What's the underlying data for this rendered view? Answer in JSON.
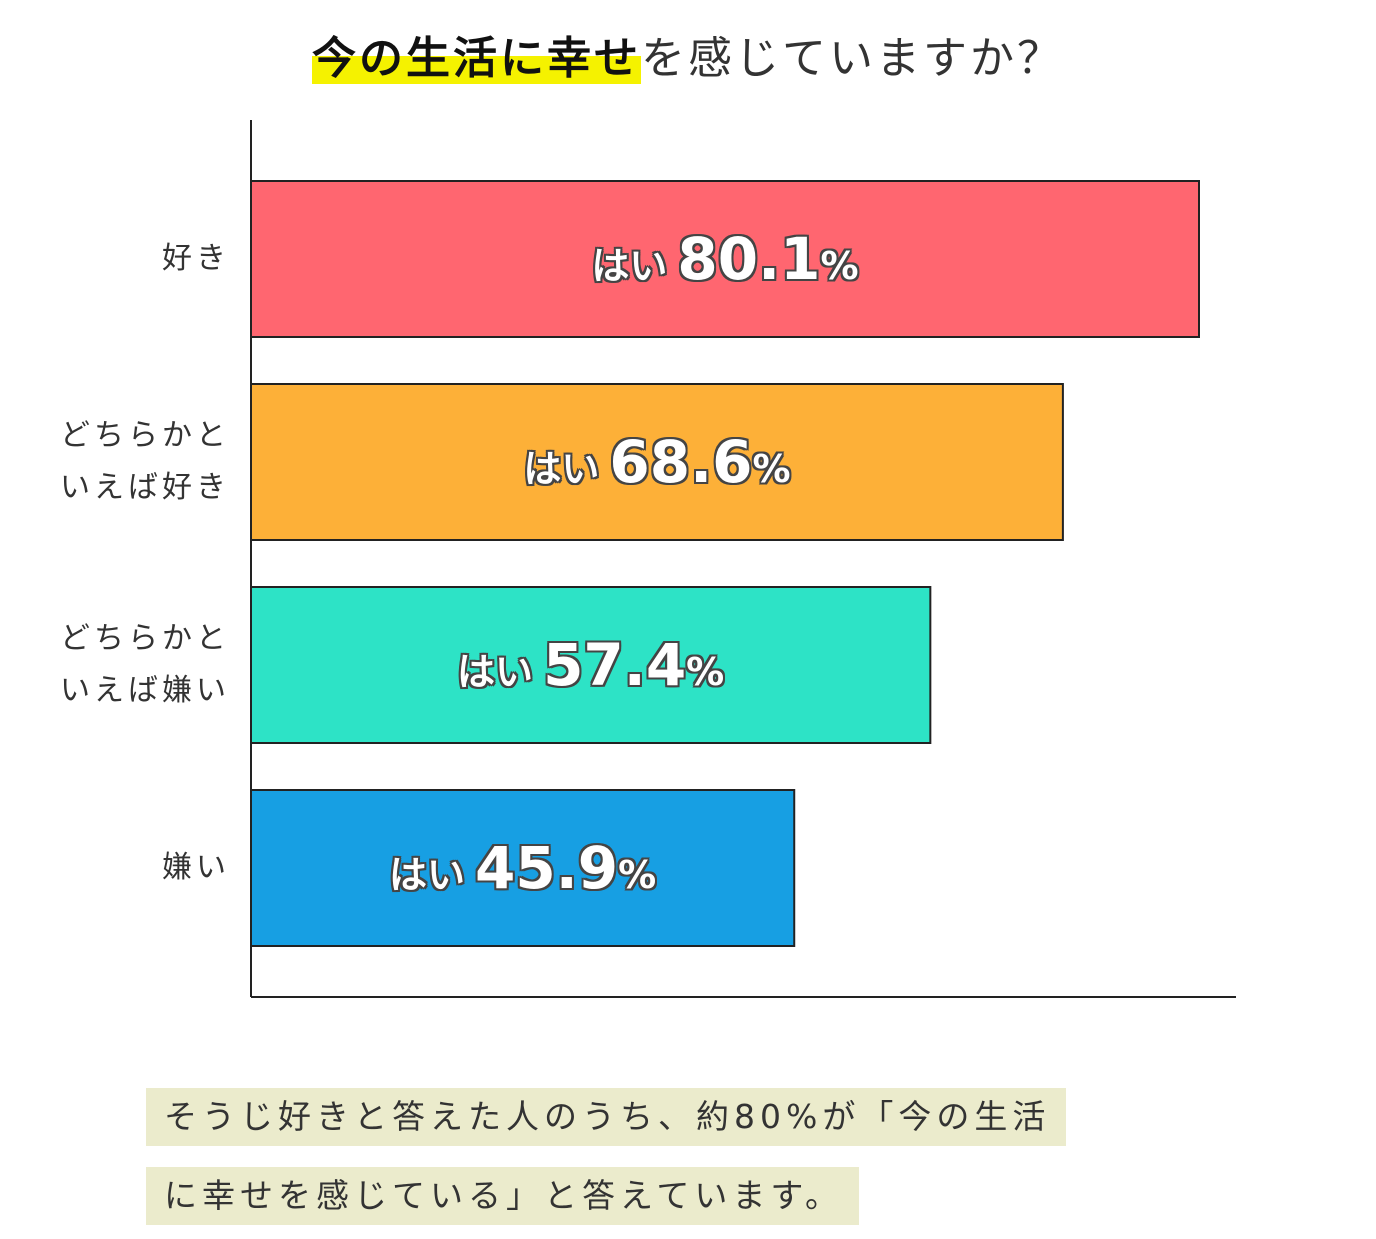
{
  "title": {
    "highlighted": "今の生活に幸せ",
    "rest": "を感じていますか？"
  },
  "colors": {
    "bars": [
      "#ff6670",
      "#fdb038",
      "#2de3c6",
      "#179fe3"
    ],
    "highlight": "#f5f200",
    "note_bg": "#ebebcc"
  },
  "chart_data": {
    "type": "bar",
    "orientation": "horizontal",
    "title": "今の生活に幸せを感じていますか？",
    "categories": [
      "好き",
      "どちらかといえば好き",
      "どちらかといえば嫌い",
      "嫌い"
    ],
    "category_lines": [
      [
        "好き"
      ],
      [
        "どちらかと",
        "いえば好き"
      ],
      [
        "どちらかと",
        "いえば嫌い"
      ],
      [
        "嫌い"
      ]
    ],
    "values": [
      80.1,
      68.6,
      57.4,
      45.9
    ],
    "value_prefix": "はい",
    "value_suffix": "%",
    "xlim": [
      0,
      100
    ],
    "grid": false,
    "legend": "none"
  },
  "note": {
    "line1": "そうじ好きと答えた人のうち、約80%が「今の生活",
    "line2": "に幸せを感じている」と答えています。"
  }
}
